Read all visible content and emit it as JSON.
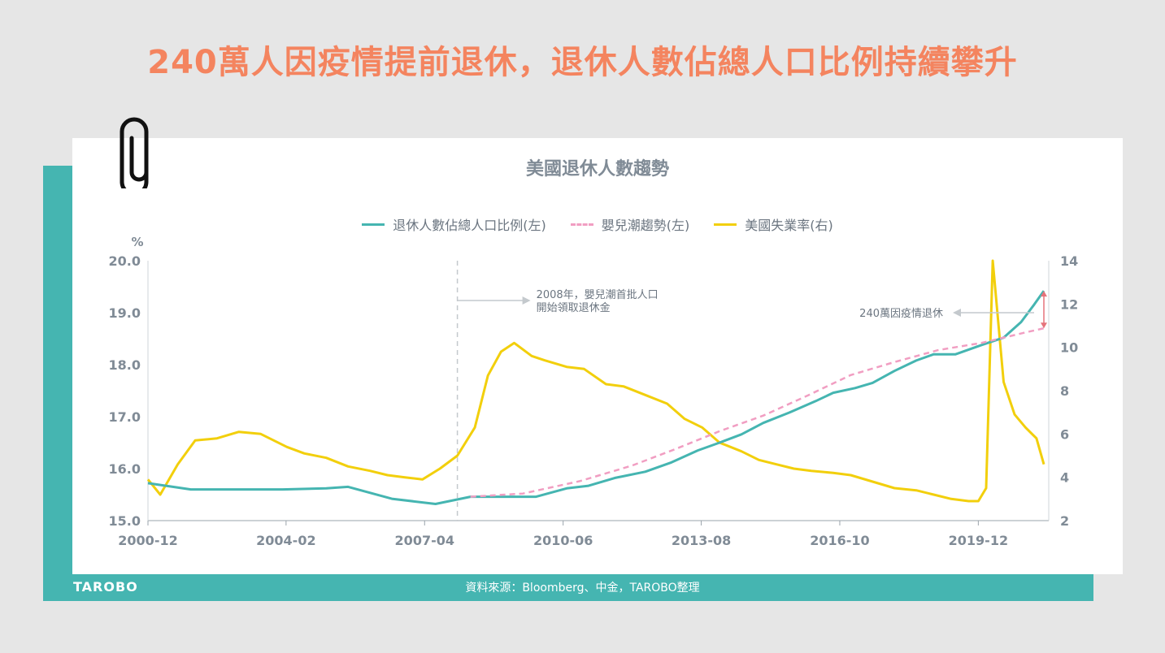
{
  "headline": "240萬人因疫情提前退休，退休人數佔總人口比例持續攀升",
  "brand": "TAROBO",
  "source": "資料來源：Bloomberg、中金，TAROBO整理",
  "colors": {
    "headline": "#f4845f",
    "teal": "#45b5b1",
    "boomer": "#f19ec2",
    "unemployment": "#f2cf0c",
    "axis_text": "#808b96",
    "annotation_red": "#e5737b"
  },
  "icons": {
    "clip": "paperclip-icon"
  },
  "chart_data": {
    "type": "line",
    "title": "美國退休人數趨勢",
    "left_unit": "%",
    "ylim": [
      15.0,
      20.0
    ],
    "y2lim": [
      2,
      14
    ],
    "x_range": [
      2000.92,
      2021.42
    ],
    "left_ticks": [
      "20.0",
      "19.0",
      "18.0",
      "17.0",
      "16.0",
      "15.0"
    ],
    "right_ticks": [
      "14",
      "12",
      "10",
      "8",
      "6",
      "4",
      "2"
    ],
    "x_ticks": [
      {
        "label": "2000-12",
        "x": 2000.92
      },
      {
        "label": "2004-02",
        "x": 2004.08
      },
      {
        "label": "2007-04",
        "x": 2007.25
      },
      {
        "label": "2010-06",
        "x": 2010.42
      },
      {
        "label": "2013-08",
        "x": 2013.58
      },
      {
        "label": "2016-10",
        "x": 2016.75
      },
      {
        "label": "2019-12",
        "x": 2019.92
      }
    ],
    "series": [
      {
        "name": "退休人數佔總人口比例(左)",
        "axis": "left",
        "x": [
          2000.92,
          2001.9,
          2003.0,
          2004.0,
          2005.0,
          2005.5,
          2006.5,
          2007.5,
          2008.3,
          2009.0,
          2009.8,
          2010.5,
          2011.0,
          2011.6,
          2012.3,
          2012.9,
          2013.5,
          2014.0,
          2014.5,
          2015.0,
          2015.6,
          2016.2,
          2016.6,
          2017.1,
          2017.5,
          2018.0,
          2018.5,
          2018.9,
          2019.4,
          2020.0,
          2020.5,
          2020.9,
          2021.2,
          2021.42
        ],
        "values": [
          15.72,
          15.6,
          15.6,
          15.6,
          15.62,
          15.65,
          15.42,
          15.32,
          15.46,
          15.46,
          15.46,
          15.62,
          15.67,
          15.82,
          15.94,
          16.12,
          16.35,
          16.5,
          16.66,
          16.88,
          17.08,
          17.3,
          17.46,
          17.55,
          17.65,
          17.88,
          18.08,
          18.2,
          18.2,
          18.38,
          18.52,
          18.82,
          19.16,
          19.42
        ]
      },
      {
        "name": "嬰兒潮趨勢(左)",
        "axis": "left",
        "dashed": true,
        "x": [
          2008.3,
          2009.5,
          2010.8,
          2012.0,
          2013.0,
          2014.0,
          2015.0,
          2016.0,
          2017.0,
          2018.0,
          2019.0,
          2020.0,
          2021.0,
          2021.42
        ],
        "values": [
          15.46,
          15.52,
          15.76,
          16.06,
          16.38,
          16.72,
          17.02,
          17.4,
          17.8,
          18.05,
          18.28,
          18.42,
          18.62,
          18.7
        ]
      },
      {
        "name": "美國失業率(右)",
        "axis": "right",
        "x": [
          2000.92,
          2001.2,
          2001.6,
          2002.0,
          2002.5,
          2003.0,
          2003.5,
          2003.8,
          2004.1,
          2004.5,
          2005.0,
          2005.5,
          2006.0,
          2006.4,
          2006.8,
          2007.2,
          2007.6,
          2008.0,
          2008.4,
          2008.7,
          2009.0,
          2009.3,
          2009.7,
          2010.0,
          2010.5,
          2010.9,
          2011.4,
          2011.8,
          2012.3,
          2012.8,
          2013.2,
          2013.6,
          2014.0,
          2014.5,
          2014.9,
          2015.3,
          2015.7,
          2016.1,
          2016.6,
          2017.0,
          2017.5,
          2018.0,
          2018.5,
          2018.9,
          2019.3,
          2019.7,
          2019.92,
          2020.1,
          2020.25,
          2020.5,
          2020.75,
          2021.0,
          2021.25,
          2021.42
        ],
        "values": [
          3.9,
          3.2,
          4.6,
          5.7,
          5.8,
          6.1,
          6.0,
          5.7,
          5.4,
          5.1,
          4.9,
          4.5,
          4.3,
          4.1,
          4.0,
          3.9,
          4.4,
          5.0,
          6.3,
          8.7,
          9.8,
          10.2,
          9.6,
          9.4,
          9.1,
          9.0,
          8.3,
          8.2,
          7.8,
          7.4,
          6.7,
          6.3,
          5.6,
          5.2,
          4.8,
          4.6,
          4.4,
          4.3,
          4.2,
          4.1,
          3.8,
          3.5,
          3.4,
          3.2,
          3.0,
          2.9,
          2.9,
          3.5,
          14.0,
          8.4,
          6.9,
          6.3,
          5.8,
          4.6
        ]
      }
    ],
    "annotations": [
      {
        "text_line1": "2008年，嬰兒潮首批人口",
        "text_line2": "開始領取退休金",
        "x": 2008.0
      },
      {
        "text": "240萬因疫情退休",
        "x": 2021.42,
        "from": 18.7,
        "to": 19.42
      }
    ]
  }
}
